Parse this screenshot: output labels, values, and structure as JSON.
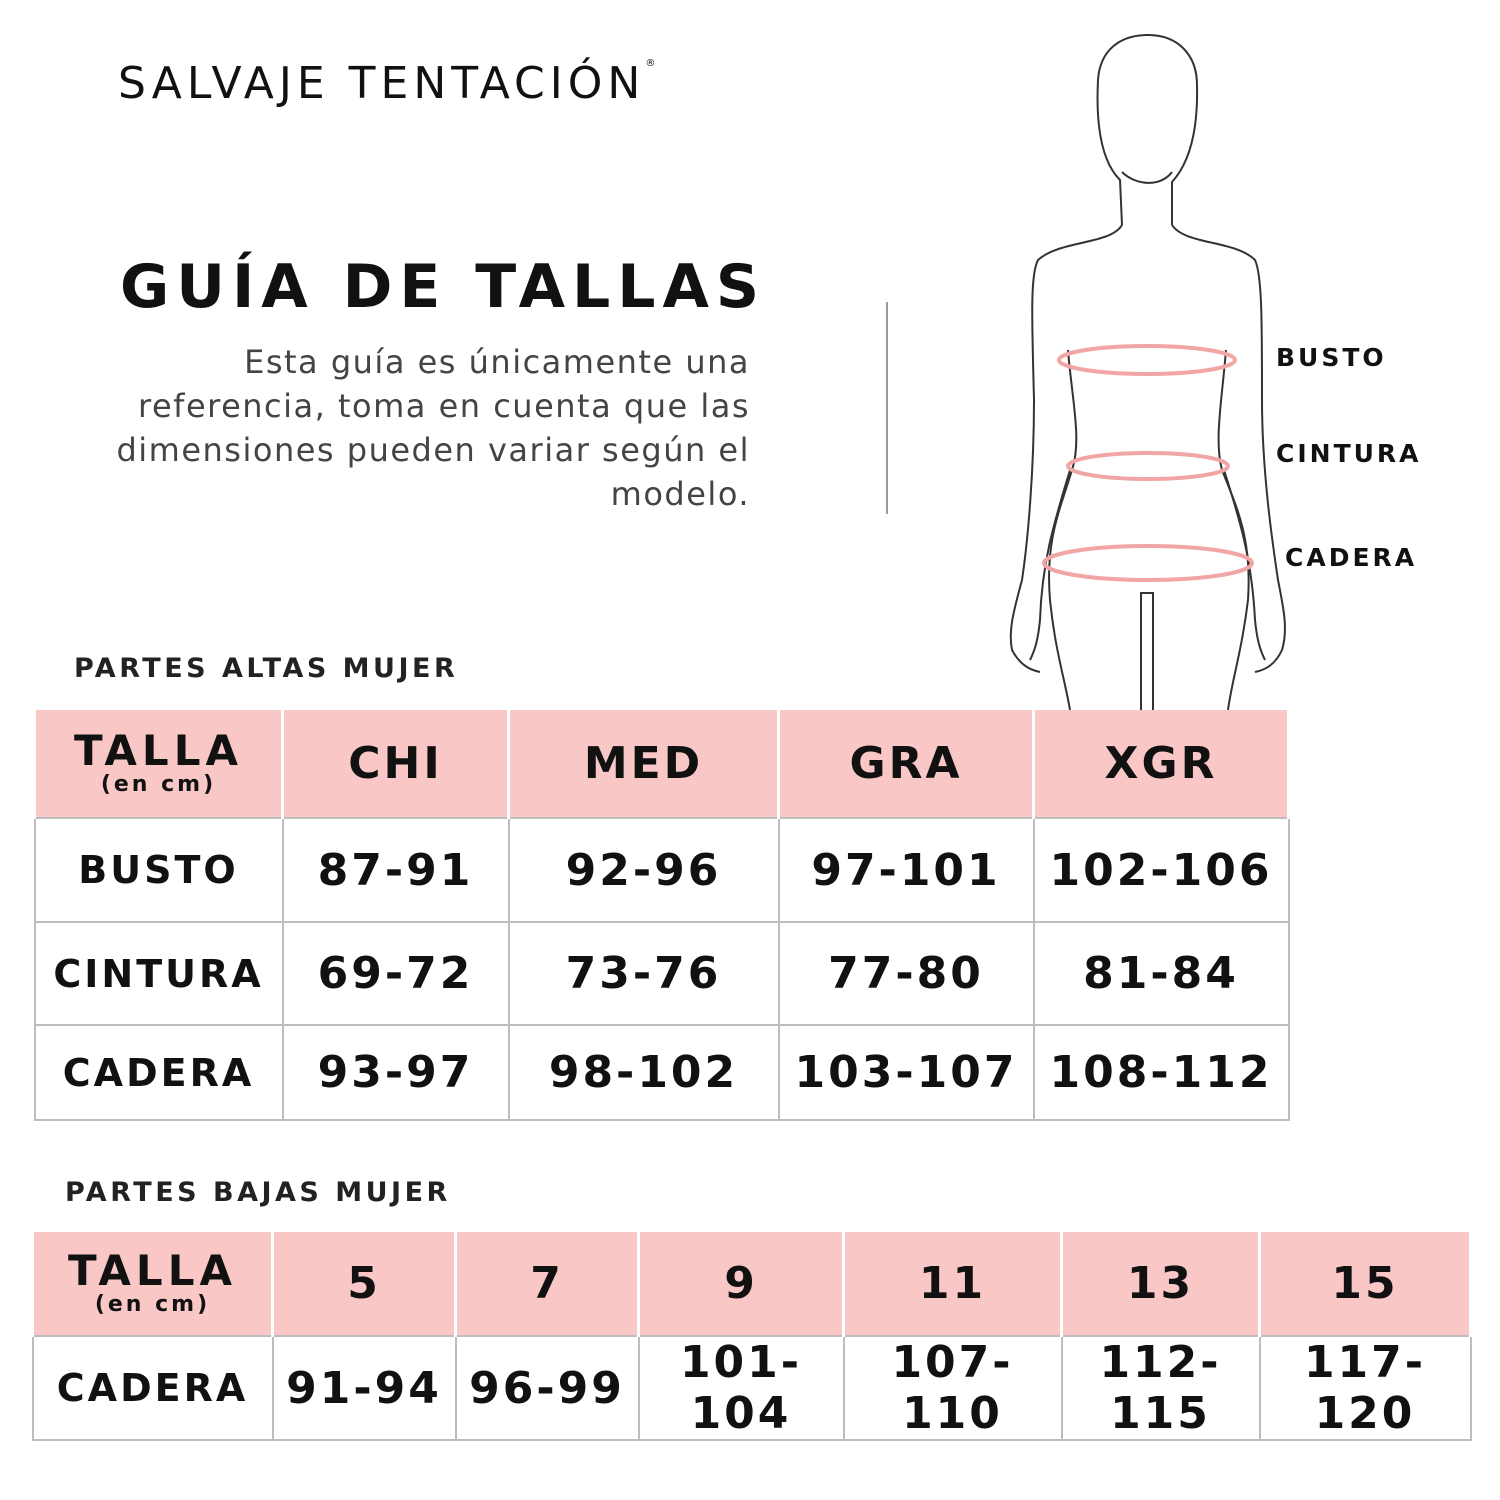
{
  "brand": {
    "name": "SALVAJE TENTACIÓN",
    "mark": "®"
  },
  "title": "GUÍA DE TALLAS",
  "description": "Esta guía es únicamente una referencia, toma en cuenta que las dimensiones pueden variar según el modelo.",
  "figure": {
    "labels": [
      "BUSTO",
      "CINTURA",
      "CADERA"
    ],
    "measure_color": "#f2a5a5"
  },
  "colors": {
    "header_bg": "#fac7c7",
    "grid": "#bdbdbd"
  },
  "upper": {
    "title": "PARTES ALTAS MUJER",
    "header": {
      "talla": "TALLA",
      "unit": "(en cm)",
      "sizes": [
        "CHI",
        "MED",
        "GRA",
        "XGR"
      ]
    },
    "rows": [
      {
        "label": "BUSTO",
        "values": [
          "87-91",
          "92-96",
          "97-101",
          "102-106"
        ]
      },
      {
        "label": "CINTURA",
        "values": [
          "69-72",
          "73-76",
          "77-80",
          "81-84"
        ]
      },
      {
        "label": "CADERA",
        "values": [
          "93-97",
          "98-102",
          "103-107",
          "108-112"
        ]
      }
    ]
  },
  "lower": {
    "title": "PARTES BAJAS MUJER",
    "header": {
      "talla": "TALLA",
      "unit": "(en cm)",
      "sizes": [
        "5",
        "7",
        "9",
        "11",
        "13",
        "15"
      ]
    },
    "rows": [
      {
        "label": "CADERA",
        "values": [
          "91-94",
          "96-99",
          "101-104",
          "107-110",
          "112-115",
          "117-120"
        ]
      }
    ]
  }
}
